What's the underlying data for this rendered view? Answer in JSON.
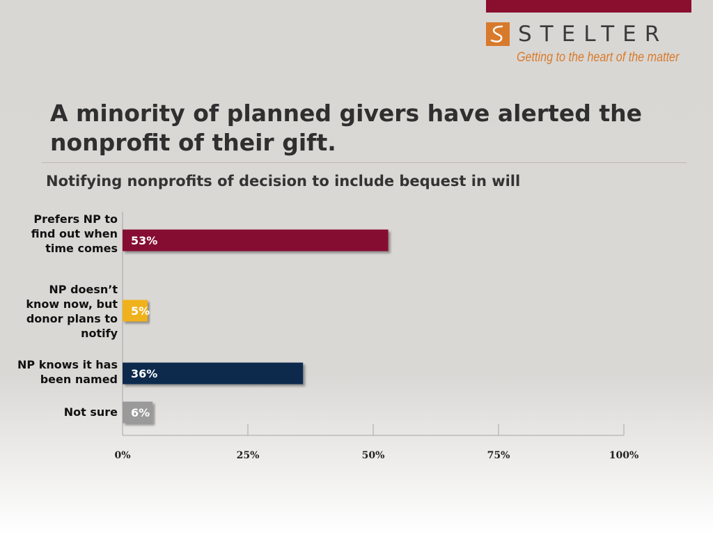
{
  "brand": {
    "name": "STELTER",
    "tagline": "Getting to the heart of the matter",
    "logo_icon": "stelter-s-logo-icon",
    "accent_color": "#8a0e2e",
    "orange": "#d87a2c"
  },
  "slide": {
    "title": "A minority of planned givers have alerted the nonprofit of their gift."
  },
  "chart_data": {
    "type": "bar",
    "orientation": "horizontal",
    "title": "Notifying nonprofits of decision to include bequest in will",
    "categories": [
      "Prefers NP to find out when time comes",
      "NP doesn’t know now, but donor plans to notify",
      "NP knows it has been named",
      "Not sure"
    ],
    "values": [
      53,
      5,
      36,
      6
    ],
    "data_labels": [
      "53%",
      "5%",
      "36%",
      "6%"
    ],
    "colors": [
      "#861030",
      "#f0b21a",
      "#0b2a4d",
      "#9a9a9a"
    ],
    "xlim": [
      0,
      100
    ],
    "x_ticks": [
      {
        "value": 0,
        "label": "0%"
      },
      {
        "value": 25,
        "label": "25%"
      },
      {
        "value": 50,
        "label": "50%"
      },
      {
        "value": 75,
        "label": "75%"
      },
      {
        "value": 100,
        "label": "100%"
      }
    ],
    "grid": false,
    "legend": "none"
  }
}
